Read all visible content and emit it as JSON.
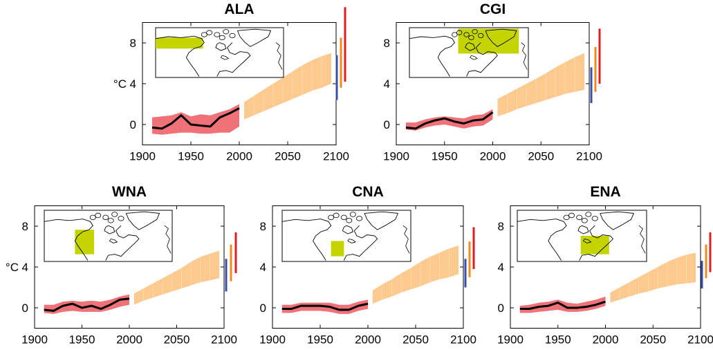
{
  "colors": {
    "observed_band": "#ee7277",
    "observed_line": "#000000",
    "projection_band": "#fcc98f",
    "bar_low": "#3a4ea8",
    "bar_mid": "#f08a1c",
    "bar_high": "#e21b1f",
    "region_fill": "#c3d400"
  },
  "chart_data": [
    {
      "type": "area",
      "title": "ALA",
      "ylabel": "°C",
      "xlim": [
        1900,
        2100
      ],
      "ylim": [
        -2,
        10
      ],
      "xticks": [
        "1900",
        "1950",
        "2000",
        "2050",
        "2100"
      ],
      "yticks": [
        "0",
        "4",
        "8"
      ],
      "map_icon": "north-america-map-icon",
      "observed_line": {
        "x": [
          1910,
          1920,
          1930,
          1940,
          1950,
          1960,
          1970,
          1980,
          1990,
          2000
        ],
        "y": [
          -0.3,
          -0.4,
          0.1,
          0.9,
          0.0,
          -0.1,
          -0.2,
          0.7,
          1.1,
          1.6
        ]
      },
      "observed_band": {
        "x": [
          1910,
          1920,
          1930,
          1940,
          1950,
          1960,
          1970,
          1980,
          1990,
          2000
        ],
        "lower": [
          -0.9,
          -1.0,
          -0.9,
          -0.8,
          -0.8,
          -0.9,
          -0.9,
          -0.8,
          -0.8,
          -0.2
        ],
        "upper": [
          0.7,
          0.8,
          0.9,
          1.2,
          0.8,
          1.0,
          0.9,
          1.2,
          1.5,
          2.0
        ]
      },
      "projection_band": {
        "x": [
          2005,
          2015,
          2025,
          2035,
          2045,
          2055,
          2065,
          2075,
          2085,
          2095
        ],
        "lower": [
          0.5,
          0.9,
          1.3,
          1.7,
          2.1,
          2.5,
          2.9,
          3.3,
          3.6,
          4.0
        ],
        "upper": [
          2.2,
          2.8,
          3.4,
          4.0,
          4.6,
          5.2,
          5.8,
          6.3,
          6.7,
          7.0
        ]
      },
      "bars": [
        {
          "level": "low",
          "min": 2.4,
          "max": 6.8
        },
        {
          "level": "mid",
          "min": 3.6,
          "max": 8.5
        },
        {
          "level": "high",
          "min": 4.2,
          "max": 11.5
        }
      ]
    },
    {
      "type": "area",
      "title": "CGI",
      "ylabel": "",
      "xlim": [
        1900,
        2100
      ],
      "ylim": [
        -2,
        10
      ],
      "xticks": [
        "1900",
        "1950",
        "2000",
        "2050",
        "2100"
      ],
      "yticks": [
        "0",
        "4",
        "8"
      ],
      "map_icon": "north-america-map-icon",
      "observed_line": {
        "x": [
          1910,
          1920,
          1930,
          1940,
          1950,
          1960,
          1970,
          1980,
          1990,
          2000
        ],
        "y": [
          -0.3,
          -0.4,
          0.1,
          0.4,
          0.6,
          0.3,
          0.1,
          0.4,
          0.5,
          1.2
        ]
      },
      "observed_band": {
        "x": [
          1910,
          1920,
          1930,
          1940,
          1950,
          1960,
          1970,
          1980,
          1990,
          2000
        ],
        "lower": [
          -0.5,
          -0.6,
          -0.3,
          -0.1,
          0.0,
          -0.2,
          -0.4,
          -0.2,
          -0.1,
          0.5
        ],
        "upper": [
          0.2,
          0.2,
          0.5,
          0.7,
          0.8,
          0.7,
          0.6,
          0.9,
          1.0,
          1.5
        ]
      },
      "projection_band": {
        "x": [
          2005,
          2015,
          2025,
          2035,
          2045,
          2055,
          2065,
          2075,
          2085,
          2095
        ],
        "lower": [
          0.8,
          1.1,
          1.5,
          1.8,
          2.1,
          2.4,
          2.7,
          3.0,
          3.2,
          3.4
        ],
        "upper": [
          2.5,
          3.0,
          3.5,
          4.0,
          4.5,
          5.0,
          5.6,
          6.1,
          6.6,
          7.0
        ]
      },
      "bars": [
        {
          "level": "low",
          "min": 2.1,
          "max": 5.6
        },
        {
          "level": "mid",
          "min": 3.2,
          "max": 7.6
        },
        {
          "level": "high",
          "min": 4.0,
          "max": 9.4
        }
      ]
    },
    {
      "type": "area",
      "title": "WNA",
      "ylabel": "°C",
      "xlim": [
        1900,
        2100
      ],
      "ylim": [
        -2,
        10
      ],
      "xticks": [
        "1900",
        "1950",
        "2000",
        "2050",
        "2100"
      ],
      "yticks": [
        "0",
        "4",
        "8"
      ],
      "map_icon": "north-america-map-icon",
      "observed_line": {
        "x": [
          1910,
          1920,
          1930,
          1940,
          1950,
          1960,
          1970,
          1980,
          1990,
          2000
        ],
        "y": [
          -0.2,
          -0.3,
          0.2,
          0.4,
          0.0,
          0.2,
          -0.1,
          0.3,
          0.8,
          0.9
        ]
      },
      "observed_band": {
        "x": [
          1910,
          1920,
          1930,
          1940,
          1950,
          1960,
          1970,
          1980,
          1990,
          2000
        ],
        "lower": [
          -0.5,
          -0.6,
          -0.4,
          -0.3,
          -0.4,
          -0.4,
          -0.4,
          -0.2,
          0.1,
          0.3
        ],
        "upper": [
          0.3,
          0.3,
          0.6,
          0.7,
          0.6,
          0.7,
          0.6,
          0.8,
          1.1,
          1.3
        ]
      },
      "projection_band": {
        "x": [
          2005,
          2015,
          2025,
          2035,
          2045,
          2055,
          2065,
          2075,
          2085,
          2095
        ],
        "lower": [
          0.3,
          0.7,
          1.0,
          1.3,
          1.6,
          1.9,
          2.2,
          2.5,
          2.7,
          2.9
        ],
        "upper": [
          1.4,
          1.9,
          2.4,
          2.9,
          3.4,
          3.9,
          4.5,
          5.0,
          5.3,
          5.6
        ]
      },
      "bars": [
        {
          "level": "low",
          "min": 1.6,
          "max": 4.8
        },
        {
          "level": "mid",
          "min": 2.6,
          "max": 6.2
        },
        {
          "level": "high",
          "min": 3.4,
          "max": 7.4
        }
      ]
    },
    {
      "type": "area",
      "title": "CNA",
      "ylabel": "",
      "xlim": [
        1900,
        2100
      ],
      "ylim": [
        -2,
        10
      ],
      "xticks": [
        "1900",
        "1950",
        "2000",
        "2050",
        "2100"
      ],
      "yticks": [
        "0",
        "4",
        "8"
      ],
      "map_icon": "north-america-map-icon",
      "observed_line": {
        "x": [
          1910,
          1920,
          1930,
          1940,
          1950,
          1960,
          1970,
          1980,
          1990,
          2000
        ],
        "y": [
          -0.1,
          -0.1,
          0.2,
          0.2,
          0.2,
          0.1,
          -0.2,
          -0.2,
          0.2,
          0.4
        ]
      },
      "observed_band": {
        "x": [
          1910,
          1920,
          1930,
          1940,
          1950,
          1960,
          1970,
          1980,
          1990,
          2000
        ],
        "lower": [
          -0.5,
          -0.5,
          -0.3,
          -0.3,
          -0.3,
          -0.4,
          -0.6,
          -0.6,
          -0.3,
          -0.1
        ],
        "upper": [
          0.3,
          0.3,
          0.5,
          0.5,
          0.5,
          0.5,
          0.3,
          0.3,
          0.6,
          0.8
        ]
      },
      "projection_band": {
        "x": [
          2005,
          2015,
          2025,
          2035,
          2045,
          2055,
          2065,
          2075,
          2085,
          2095
        ],
        "lower": [
          0.4,
          0.8,
          1.1,
          1.5,
          1.8,
          2.1,
          2.5,
          2.8,
          3.0,
          3.3
        ],
        "upper": [
          1.7,
          2.3,
          2.8,
          3.4,
          3.9,
          4.5,
          5.0,
          5.4,
          5.8,
          6.1
        ]
      },
      "bars": [
        {
          "level": "low",
          "min": 2.0,
          "max": 4.8
        },
        {
          "level": "mid",
          "min": 3.0,
          "max": 6.5
        },
        {
          "level": "high",
          "min": 3.8,
          "max": 7.9
        }
      ]
    },
    {
      "type": "area",
      "title": "ENA",
      "ylabel": "",
      "xlim": [
        1900,
        2100
      ],
      "ylim": [
        -2,
        10
      ],
      "xticks": [
        "1900",
        "1950",
        "2000",
        "2050",
        "2100"
      ],
      "yticks": [
        "0",
        "4",
        "8"
      ],
      "map_icon": "north-america-map-icon",
      "observed_line": {
        "x": [
          1910,
          1920,
          1930,
          1940,
          1950,
          1960,
          1970,
          1980,
          1990,
          2000
        ],
        "y": [
          -0.1,
          -0.1,
          0.1,
          0.2,
          0.5,
          0.0,
          0.0,
          0.1,
          0.3,
          0.6
        ]
      },
      "observed_band": {
        "x": [
          1910,
          1920,
          1930,
          1940,
          1950,
          1960,
          1970,
          1980,
          1990,
          2000
        ],
        "lower": [
          -0.5,
          -0.5,
          -0.4,
          -0.3,
          -0.2,
          -0.4,
          -0.4,
          -0.3,
          -0.1,
          0.2
        ],
        "upper": [
          0.2,
          0.3,
          0.5,
          0.6,
          0.8,
          0.5,
          0.4,
          0.6,
          0.8,
          1.1
        ]
      },
      "projection_band": {
        "x": [
          2005,
          2015,
          2025,
          2035,
          2045,
          2055,
          2065,
          2075,
          2085,
          2095
        ],
        "lower": [
          0.5,
          0.8,
          1.1,
          1.4,
          1.6,
          1.9,
          2.1,
          2.3,
          2.4,
          2.5
        ],
        "upper": [
          1.5,
          2.0,
          2.5,
          3.0,
          3.5,
          4.0,
          4.5,
          4.9,
          5.2,
          5.4
        ]
      },
      "bars": [
        {
          "level": "low",
          "min": 1.9,
          "max": 4.6
        },
        {
          "level": "mid",
          "min": 2.9,
          "max": 6.2
        },
        {
          "level": "high",
          "min": 3.5,
          "max": 7.4
        }
      ]
    }
  ]
}
